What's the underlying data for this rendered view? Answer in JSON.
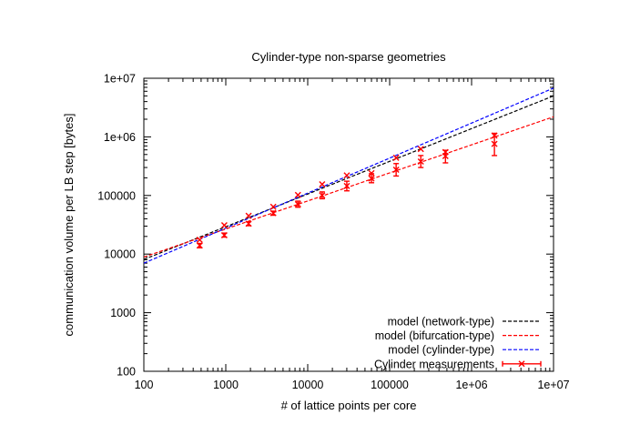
{
  "chart_data": {
    "type": "line",
    "title": "Cylinder-type non-sparse geometries",
    "xlabel": "# of lattice points per core",
    "ylabel": "communication volume per LB step [bytes]",
    "x_scale": "log",
    "y_scale": "log",
    "xlim": [
      100,
      10000000
    ],
    "ylim": [
      100,
      10000000
    ],
    "x_ticks": [
      {
        "value": 100,
        "label": "100"
      },
      {
        "value": 1000,
        "label": "1000"
      },
      {
        "value": 10000,
        "label": "10000"
      },
      {
        "value": 100000,
        "label": "100000"
      },
      {
        "value": 1000000,
        "label": "1e+06"
      },
      {
        "value": 10000000,
        "label": "1e+07"
      }
    ],
    "y_ticks": [
      {
        "value": 100,
        "label": "100"
      },
      {
        "value": 1000,
        "label": "1000"
      },
      {
        "value": 10000,
        "label": "10000"
      },
      {
        "value": 100000,
        "label": "100000"
      },
      {
        "value": 1000000,
        "label": "1e+06"
      },
      {
        "value": 10000000,
        "label": "1e+07"
      }
    ],
    "grid": false,
    "legend_position": "bottom-right",
    "series": [
      {
        "name": "model (network-type)",
        "kind": "model",
        "color": "#000000",
        "x": [
          100,
          10000000
        ],
        "y": [
          8100,
          5000000
        ]
      },
      {
        "name": "model (bifurcation-type)",
        "kind": "model",
        "color": "#ff0000",
        "x": [
          100,
          10000000
        ],
        "y": [
          8900,
          2200000
        ]
      },
      {
        "name": "model (cylinder-type)",
        "kind": "model",
        "color": "#0000ff",
        "x": [
          100,
          10000000
        ],
        "y": [
          7000,
          6800000
        ]
      },
      {
        "name": "Cylinder measurements",
        "kind": "errorbars",
        "color": "#ff0000",
        "points": [
          {
            "x": 480,
            "y": 14000,
            "low": 12800,
            "high": 15200
          },
          {
            "x": 960,
            "y": 21000,
            "low": 19500,
            "high": 22800
          },
          {
            "x": 1900,
            "y": 33000,
            "low": 30500,
            "high": 35500
          },
          {
            "x": 3800,
            "y": 50000,
            "low": 46000,
            "high": 54000
          },
          {
            "x": 7600,
            "y": 71000,
            "low": 63000,
            "high": 80000
          },
          {
            "x": 15000,
            "y": 100000,
            "low": 88000,
            "high": 115000
          },
          {
            "x": 30000,
            "y": 145000,
            "low": 120000,
            "high": 175000
          },
          {
            "x": 60000,
            "y": 195000,
            "low": 165000,
            "high": 235000
          },
          {
            "x": 120000,
            "y": 275000,
            "low": 215000,
            "high": 350000
          },
          {
            "x": 240000,
            "y": 380000,
            "low": 300000,
            "high": 480000
          },
          {
            "x": 480000,
            "y": 470000,
            "low": 360000,
            "high": 590000
          },
          {
            "x": 1900000,
            "y": 760000,
            "low": 480000,
            "high": 1150000
          }
        ],
        "extra_markers": [
          {
            "x": 480,
            "y": 17500
          },
          {
            "x": 960,
            "y": 31000
          },
          {
            "x": 1900,
            "y": 45000
          },
          {
            "x": 3800,
            "y": 64000
          },
          {
            "x": 7600,
            "y": 102000
          },
          {
            "x": 15000,
            "y": 155000
          },
          {
            "x": 30000,
            "y": 220000
          },
          {
            "x": 60000,
            "y": 240000
          },
          {
            "x": 120000,
            "y": 440000
          },
          {
            "x": 240000,
            "y": 620000
          },
          {
            "x": 480000,
            "y": 550000
          },
          {
            "x": 1900000,
            "y": 1050000
          }
        ]
      }
    ]
  }
}
